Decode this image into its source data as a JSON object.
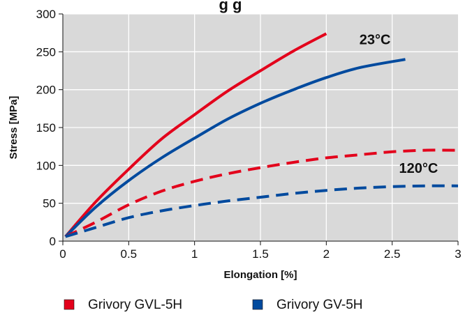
{
  "chart_data": {
    "type": "line",
    "title_fragment": "g   g",
    "xlabel": "Elongation [%]",
    "ylabel": "Stress [MPa]",
    "xlim": [
      0,
      3
    ],
    "ylim": [
      0,
      300
    ],
    "x_ticks": [
      "0",
      "0.5",
      "1",
      "1.5",
      "2",
      "2.5",
      "3"
    ],
    "y_ticks": [
      "0",
      "50",
      "100",
      "150",
      "200",
      "250",
      "300"
    ],
    "grid": true,
    "background_color": "#d9d9d9",
    "legend_position": "bottom",
    "annotations": [
      {
        "text": "23°C",
        "x": 2.37,
        "y": 260
      },
      {
        "text": "120°C",
        "x": 2.7,
        "y": 90
      }
    ],
    "series": [
      {
        "name": "Grivory GVL-5H",
        "temperature": "23°C",
        "color": "#e3001b",
        "dash": "solid",
        "x": [
          0.02,
          0.25,
          0.5,
          0.75,
          1.0,
          1.25,
          1.5,
          1.75,
          2.0
        ],
        "y": [
          6,
          52,
          95,
          135,
          167,
          198,
          225,
          251,
          274
        ]
      },
      {
        "name": "Grivory GV-5H",
        "temperature": "23°C",
        "color": "#004a9e",
        "dash": "solid",
        "x": [
          0.02,
          0.25,
          0.5,
          0.75,
          1.0,
          1.25,
          1.5,
          1.75,
          2.0,
          2.25,
          2.6
        ],
        "y": [
          6,
          45,
          80,
          110,
          136,
          161,
          182,
          200,
          216,
          229,
          240
        ]
      },
      {
        "name": "Grivory GVL-5H",
        "temperature": "120°C",
        "color": "#e3001b",
        "dash": "dashed",
        "x": [
          0.02,
          0.25,
          0.5,
          0.75,
          1.0,
          1.25,
          1.5,
          1.75,
          2.0,
          2.25,
          2.5,
          2.75,
          3.0
        ],
        "y": [
          6,
          25,
          48,
          66,
          79,
          89,
          97,
          104,
          110,
          114,
          118,
          120,
          120
        ]
      },
      {
        "name": "Grivory GV-5H",
        "temperature": "120°C",
        "color": "#004a9e",
        "dash": "dashed",
        "x": [
          0.02,
          0.25,
          0.5,
          0.75,
          1.0,
          1.25,
          1.5,
          1.75,
          2.0,
          2.25,
          2.5,
          2.75,
          3.0
        ],
        "y": [
          6,
          18,
          31,
          40,
          47,
          53,
          58,
          63,
          67,
          70,
          72,
          73,
          73
        ]
      }
    ],
    "legend": [
      {
        "label": "Grivory GVL-5H",
        "color": "#e3001b"
      },
      {
        "label": "Grivory GV-5H",
        "color": "#004a9e"
      }
    ]
  }
}
